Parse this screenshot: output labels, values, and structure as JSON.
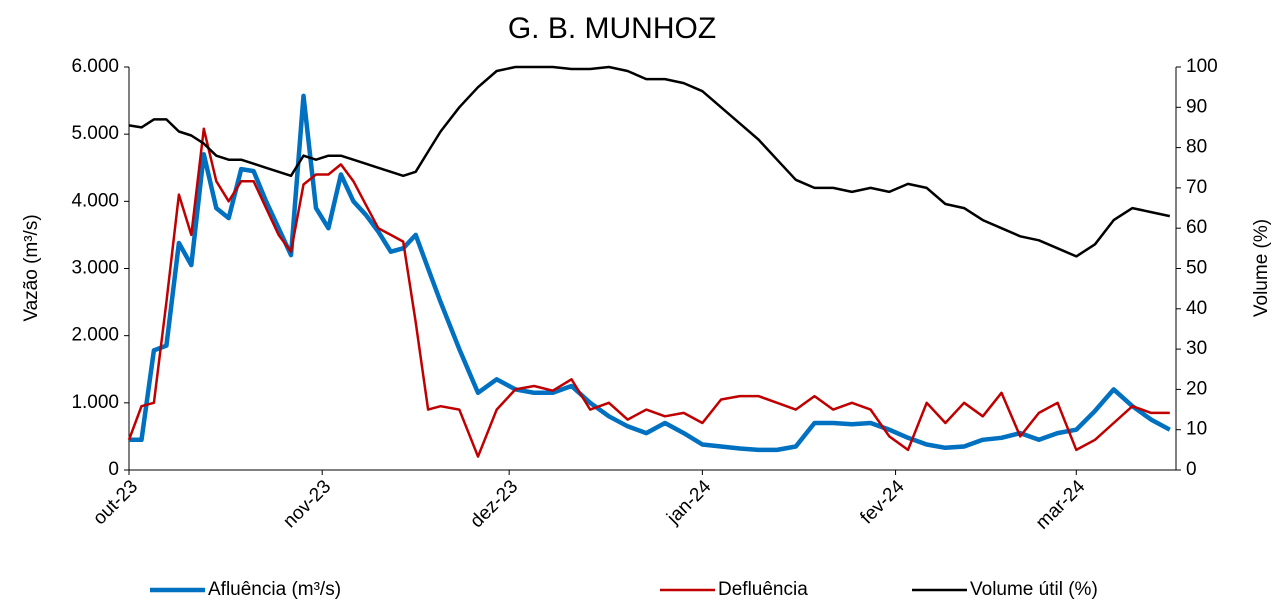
{
  "chart_data": {
    "type": "line",
    "title": "G. B. MUNHOZ",
    "y_label": "Vazão (m³/s)",
    "y2_label": "Volume (%)",
    "x": [
      0,
      2,
      4,
      6,
      8,
      10,
      12,
      14,
      16,
      18,
      20,
      22,
      24,
      26,
      28,
      30,
      32,
      34,
      36,
      38,
      40,
      42,
      44,
      46,
      48,
      50,
      53,
      56,
      59,
      62,
      65,
      68,
      71,
      74,
      77,
      80,
      83,
      86,
      89,
      92,
      95,
      98,
      101,
      104,
      107,
      110,
      113,
      116,
      119,
      122,
      125,
      128,
      131,
      134,
      137,
      140,
      143,
      146,
      149,
      152,
      155,
      158,
      161,
      164,
      167
    ],
    "xlim": [
      0,
      168
    ],
    "xticks": [
      {
        "value": 0,
        "label": "out-23"
      },
      {
        "value": 31,
        "label": "nov-23"
      },
      {
        "value": 61,
        "label": "dez-23"
      },
      {
        "value": 92,
        "label": "jan-24"
      },
      {
        "value": 123,
        "label": "fev-24"
      },
      {
        "value": 152,
        "label": "mar-24"
      }
    ],
    "ylim": [
      0,
      6000
    ],
    "yticks": [
      {
        "value": 0,
        "label": "0"
      },
      {
        "value": 1000,
        "label": "1.000"
      },
      {
        "value": 2000,
        "label": "2.000"
      },
      {
        "value": 3000,
        "label": "3.000"
      },
      {
        "value": 4000,
        "label": "4.000"
      },
      {
        "value": 5000,
        "label": "5.000"
      },
      {
        "value": 6000,
        "label": "6.000"
      }
    ],
    "y2lim": [
      0,
      100
    ],
    "y2ticks": [
      0,
      10,
      20,
      30,
      40,
      50,
      60,
      70,
      80,
      90,
      100
    ],
    "grid": false,
    "legend": "bottom",
    "series": [
      {
        "name": "Afluência (m³/s)",
        "color": "#0070c0",
        "values": [
          450,
          450,
          1780,
          1850,
          3380,
          3050,
          4700,
          3900,
          3750,
          4480,
          4450,
          4000,
          3600,
          3200,
          5570,
          3900,
          3600,
          4400,
          4000,
          3800,
          3550,
          3250,
          3300,
          3500,
          3000,
          2500,
          1800,
          1150,
          1350,
          1200,
          1150,
          1150,
          1250,
          1000,
          800,
          650,
          550,
          700,
          550,
          380,
          350,
          320,
          300,
          300,
          350,
          700,
          700,
          680,
          700,
          600,
          480,
          380,
          330,
          350,
          450,
          480,
          550,
          450,
          550,
          600,
          880,
          1200,
          950,
          750,
          600
        ]
      },
      {
        "name": "Defluência",
        "color": "#c00000",
        "values": [
          450,
          950,
          1000,
          2500,
          4100,
          3500,
          5080,
          4300,
          4000,
          4300,
          4300,
          3900,
          3500,
          3250,
          4250,
          4400,
          4400,
          4550,
          4300,
          3950,
          3600,
          3500,
          3400,
          2200,
          900,
          950,
          900,
          200,
          900,
          1200,
          1250,
          1180,
          1350,
          900,
          1000,
          750,
          900,
          800,
          850,
          700,
          1050,
          1100,
          1100,
          1000,
          900,
          1100,
          900,
          1000,
          900,
          500,
          300,
          1000,
          700,
          1000,
          800,
          1150,
          500,
          850,
          1000,
          300,
          450,
          700,
          950,
          850,
          850
        ]
      },
      {
        "name": "Volume útil (%)",
        "color": "#000000",
        "axis": "y2",
        "values": [
          85.5,
          85,
          87,
          87,
          84,
          83,
          81,
          78,
          77,
          77,
          76,
          75,
          74,
          73,
          78,
          77,
          78,
          78,
          77,
          76,
          75,
          74,
          73,
          74,
          79,
          84,
          90,
          95,
          99,
          100,
          100,
          100,
          99.5,
          99.5,
          100,
          99,
          97,
          97,
          96,
          94,
          90,
          86,
          82,
          77,
          72,
          70,
          70,
          69,
          70,
          69,
          71,
          70,
          66,
          65,
          62,
          60,
          58,
          57,
          55,
          53,
          56,
          62,
          65,
          64,
          63
        ]
      }
    ]
  }
}
